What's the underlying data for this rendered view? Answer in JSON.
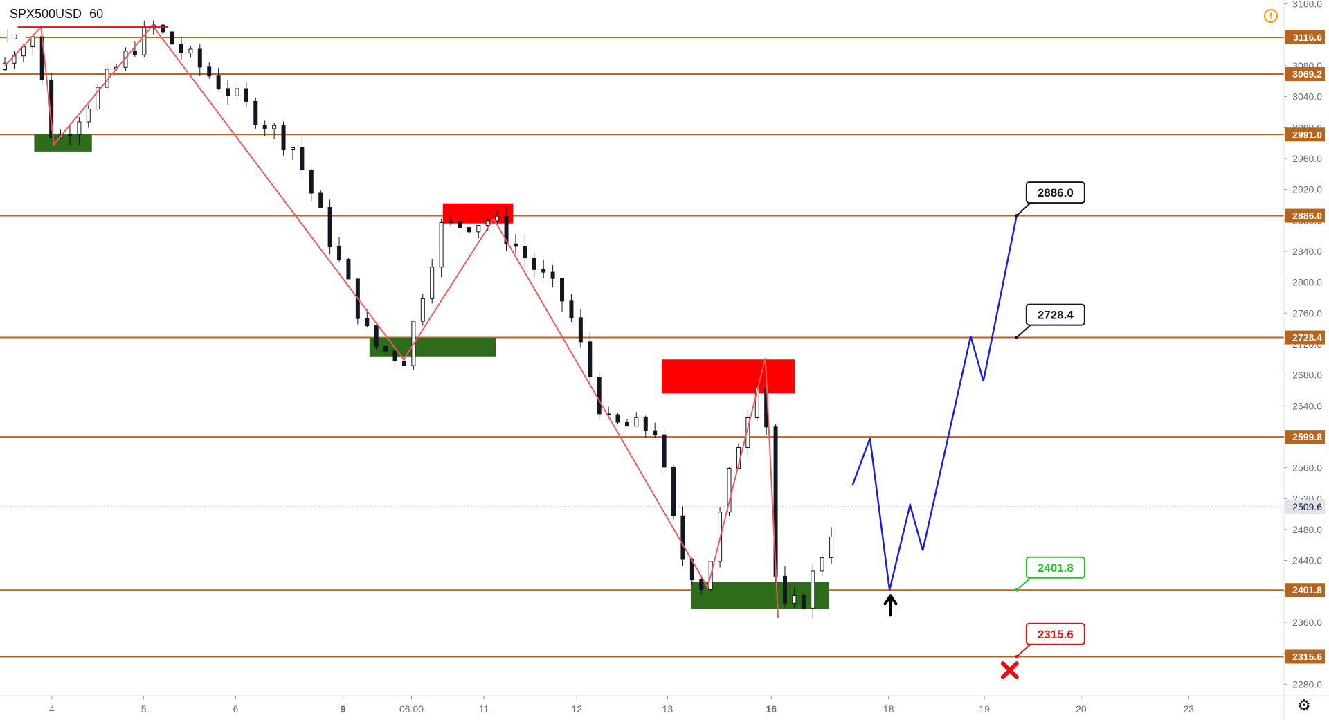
{
  "header": {
    "symbol": "SPX500USD",
    "interval": "60",
    "expand_glyph": "›",
    "warning_glyph": "!",
    "settings_glyph": "⚙"
  },
  "colors": {
    "level_line": "#c0621f",
    "level_tag": "#b5651d",
    "zigzag": "#f05a5a",
    "forecast": "#1a22d8",
    "support_zone": "#2e6b1a",
    "resistance_zone": "#ff0000",
    "candle": "#131722",
    "current_price_tag": "#e0e3eb"
  },
  "chart_data": {
    "type": "candlestick",
    "symbol": "SPX500USD",
    "interval": "60",
    "y_axis": {
      "ylim": [
        2265,
        3165
      ],
      "ticks": [
        3160.0,
        3120.0,
        3080.0,
        3040.0,
        3000.0,
        2960.0,
        2920.0,
        2880.0,
        2840.0,
        2800.0,
        2760.0,
        2720.0,
        2680.0,
        2640.0,
        2600.0,
        2560.0,
        2520.0,
        2480.0,
        2440.0,
        2400.0,
        2360.0,
        2320.0,
        2280.0
      ],
      "tick_labels": [
        "3160.0",
        "3120.0",
        "3080.0",
        "3040.0",
        "3000.0",
        "2960.0",
        "2920.0",
        "2880.0",
        "2840.0",
        "2800.0",
        "2760.0",
        "2720.0",
        "2680.0",
        "2640.0",
        "2600.0",
        "2560.0",
        "2520.0",
        "2480.0",
        "2440.0",
        "2400.0",
        "2360.0",
        "2320.0",
        "2280.0"
      ]
    },
    "x_axis": {
      "xlim": [
        0,
        131
      ],
      "ticks": [
        {
          "x": 5.3,
          "label": "4",
          "bold": false
        },
        {
          "x": 14.7,
          "label": "5",
          "bold": false
        },
        {
          "x": 24.1,
          "label": "6",
          "bold": false
        },
        {
          "x": 35.1,
          "label": "9",
          "bold": true
        },
        {
          "x": 42.1,
          "label": "06:00",
          "bold": false
        },
        {
          "x": 49.5,
          "label": "11",
          "bold": false
        },
        {
          "x": 59.0,
          "label": "12",
          "bold": false
        },
        {
          "x": 68.3,
          "label": "13",
          "bold": false
        },
        {
          "x": 78.9,
          "label": "16",
          "bold": true
        },
        {
          "x": 90.9,
          "label": "18",
          "bold": false
        },
        {
          "x": 100.7,
          "label": "19",
          "bold": false
        },
        {
          "x": 110.6,
          "label": "20",
          "bold": false
        },
        {
          "x": 121.6,
          "label": "23",
          "bold": false
        }
      ]
    },
    "levels": [
      3116.6,
      3069.2,
      2991.0,
      2886.0,
      2728.4,
      2599.8,
      2401.8,
      2315.6
    ],
    "level_labels": [
      "3116.6",
      "3069.2",
      "2991.0",
      "2886.0",
      "2728.4",
      "2599.8",
      "2401.8",
      "2315.6"
    ],
    "current_price": 2509.6,
    "current_price_label": "2509.6",
    "anchors": [
      {
        "x": 0,
        "y": 3075
      },
      {
        "x": 3.2,
        "y": 3130
      },
      {
        "x": 5.5,
        "y": 2978
      },
      {
        "x": 15.5,
        "y": 3132
      },
      {
        "x": 30,
        "y": 2975
      },
      {
        "x": 38,
        "y": 2720
      },
      {
        "x": 41.3,
        "y": 2700
      },
      {
        "x": 45,
        "y": 2870
      },
      {
        "x": 50.3,
        "y": 2882
      },
      {
        "x": 58,
        "y": 2770
      },
      {
        "x": 62,
        "y": 2615
      },
      {
        "x": 67,
        "y": 2610
      },
      {
        "x": 69.5,
        "y": 2450
      },
      {
        "x": 72,
        "y": 2405
      },
      {
        "x": 75,
        "y": 2570
      },
      {
        "x": 78,
        "y": 2700
      },
      {
        "x": 79.6,
        "y": 2368
      },
      {
        "x": 82.2,
        "y": 2390
      },
      {
        "x": 86,
        "y": 2510
      }
    ],
    "zigzag": [
      {
        "x": 0.5,
        "y": 3080
      },
      {
        "x": 4.2,
        "y": 3130
      },
      {
        "x": 5.5,
        "y": 2978
      },
      {
        "x": 15.6,
        "y": 3132
      },
      {
        "x": 41.3,
        "y": 2700
      },
      {
        "x": 50.5,
        "y": 2882
      },
      {
        "x": 72.4,
        "y": 2405
      },
      {
        "x": 78.3,
        "y": 2702
      },
      {
        "x": 79.6,
        "y": 2366
      }
    ],
    "zigzag_top_segment": [
      {
        "x": 1.8,
        "y": 3130
      },
      {
        "x": 17.2,
        "y": 3130
      }
    ],
    "support_zones": [
      {
        "x0": 3.5,
        "x1": 9.4,
        "y0": 2969,
        "y1": 2992
      },
      {
        "x0": 37.8,
        "x1": 50.7,
        "y0": 2704,
        "y1": 2728
      },
      {
        "x0": 70.7,
        "x1": 84.8,
        "y0": 2377,
        "y1": 2412
      }
    ],
    "resistance_zones": [
      {
        "x0": 45.3,
        "x1": 52.5,
        "y0": 2876,
        "y1": 2902
      },
      {
        "x0": 67.7,
        "x1": 81.3,
        "y0": 2656,
        "y1": 2700
      }
    ],
    "forecast_path": [
      {
        "x": 87.2,
        "y": 2537
      },
      {
        "x": 89.0,
        "y": 2598
      },
      {
        "x": 91.0,
        "y": 2401.8
      },
      {
        "x": 93.1,
        "y": 2512
      },
      {
        "x": 94.4,
        "y": 2453
      },
      {
        "x": 99.3,
        "y": 2730
      },
      {
        "x": 100.6,
        "y": 2672
      },
      {
        "x": 104.0,
        "y": 2886.0
      }
    ],
    "callouts": [
      {
        "label": "2886.0",
        "x": 104.0,
        "y": 2886.0,
        "box_x": 105.0,
        "box_y": 2915,
        "text_color": "#131722",
        "border_color": "#131722"
      },
      {
        "label": "2728.4",
        "x": 104.0,
        "y": 2728.4,
        "box_x": 105.0,
        "box_y": 2757,
        "text_color": "#131722",
        "border_color": "#131722"
      },
      {
        "label": "2401.8",
        "x": 104.0,
        "y": 2401.8,
        "box_x": 105.0,
        "box_y": 2430,
        "text_color": "#22c522",
        "border_color": "#22c522"
      },
      {
        "label": "2315.6",
        "x": 104.0,
        "y": 2315.6,
        "box_x": 105.0,
        "box_y": 2344,
        "text_color": "#e81010",
        "border_color": "#e81010"
      }
    ],
    "markers": [
      {
        "type": "up-arrow",
        "x": 91.1,
        "y": 2382,
        "color": "#000000"
      },
      {
        "type": "cross",
        "x": 103.3,
        "y": 2298,
        "color": "#e81010"
      }
    ]
  }
}
